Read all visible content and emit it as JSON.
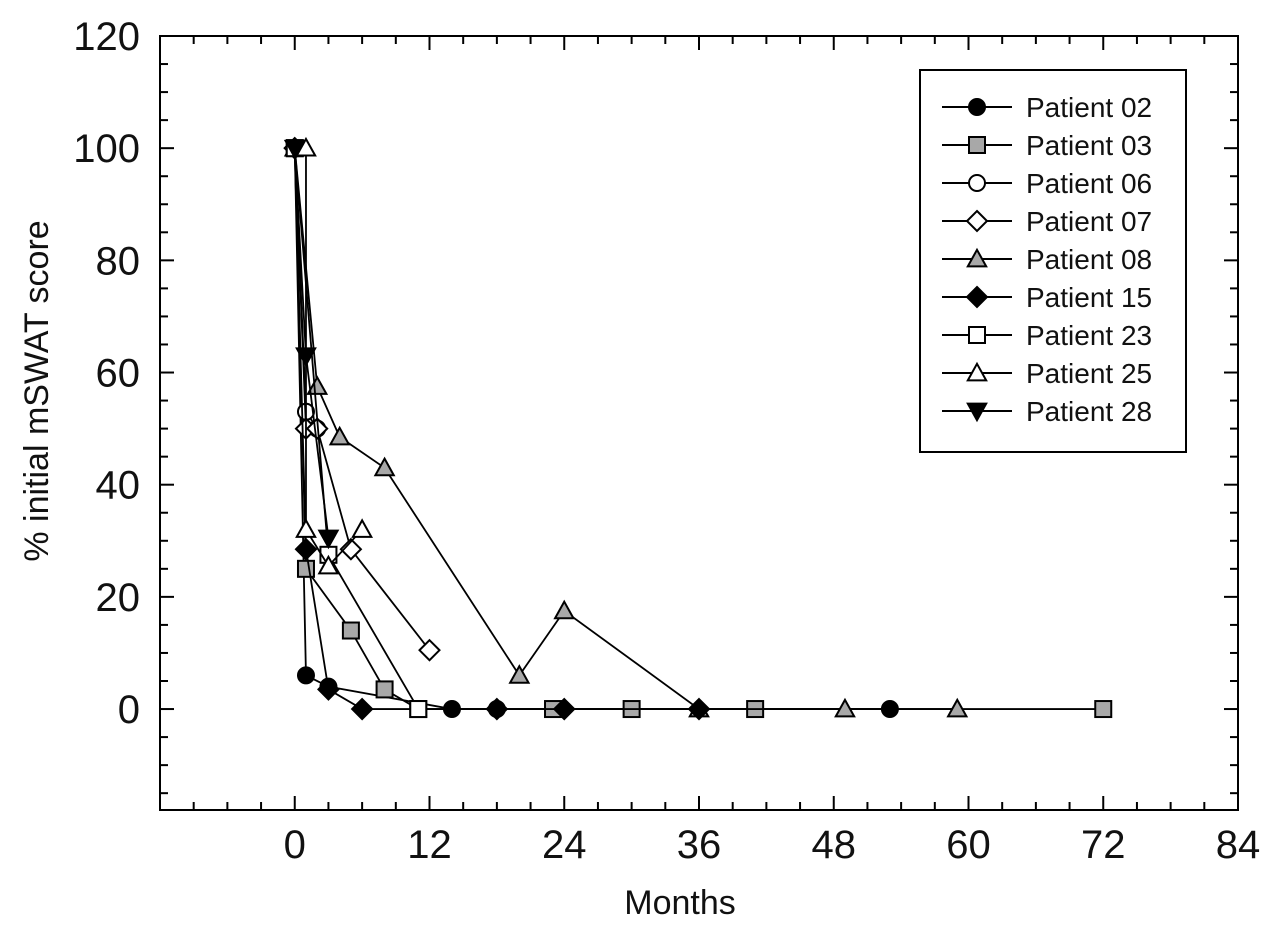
{
  "chart_data": {
    "type": "line",
    "title": "",
    "xlabel": "Months",
    "ylabel": "% initial mSWAT score",
    "xlim": [
      -12,
      84
    ],
    "ylim": [
      -18,
      120
    ],
    "x_ticks": [
      0,
      12,
      24,
      36,
      48,
      60,
      72,
      84
    ],
    "y_ticks": [
      0,
      20,
      40,
      60,
      80,
      100,
      120
    ],
    "grid": false,
    "legend_position": "top-right",
    "series": [
      {
        "name": "Patient 02",
        "marker": "circle",
        "fill": "black",
        "x": [
          0,
          1,
          3,
          14,
          18,
          53
        ],
        "y": [
          100,
          6,
          4,
          0,
          0,
          0
        ]
      },
      {
        "name": "Patient 03",
        "marker": "square",
        "fill": "gray",
        "x": [
          0,
          1,
          5,
          8,
          11,
          23,
          30,
          41,
          72
        ],
        "y": [
          100,
          25,
          14,
          3.5,
          0,
          0,
          0,
          0,
          0
        ]
      },
      {
        "name": "Patient 06",
        "marker": "circle",
        "fill": "white",
        "x": [
          0,
          1,
          2
        ],
        "y": [
          100,
          53,
          50
        ]
      },
      {
        "name": "Patient 07",
        "marker": "diamond",
        "fill": "white",
        "x": [
          0,
          1,
          2,
          5,
          12
        ],
        "y": [
          100,
          50,
          50,
          28.5,
          10.5
        ]
      },
      {
        "name": "Patient 08",
        "marker": "triangle-up",
        "fill": "gray",
        "x": [
          0,
          2,
          4,
          8,
          20,
          24,
          36,
          49,
          59
        ],
        "y": [
          100,
          57.5,
          48.5,
          43,
          6,
          17.5,
          0,
          0,
          0
        ]
      },
      {
        "name": "Patient 15",
        "marker": "diamond",
        "fill": "black",
        "x": [
          0,
          1,
          3,
          6,
          18,
          24,
          36
        ],
        "y": [
          100,
          28.5,
          3.5,
          0,
          0,
          0,
          0
        ]
      },
      {
        "name": "Patient 23",
        "marker": "square",
        "fill": "white",
        "x": [
          0,
          3,
          11
        ],
        "y": [
          100,
          27.5,
          0
        ]
      },
      {
        "name": "Patient 25",
        "marker": "triangle-up",
        "fill": "white",
        "x": [
          1,
          1,
          3,
          6
        ],
        "y": [
          100,
          32,
          25.5,
          32
        ]
      },
      {
        "name": "Patient 28",
        "marker": "triangle-down",
        "fill": "black",
        "x": [
          0,
          1,
          3
        ],
        "y": [
          100,
          63,
          30.5
        ]
      }
    ]
  }
}
